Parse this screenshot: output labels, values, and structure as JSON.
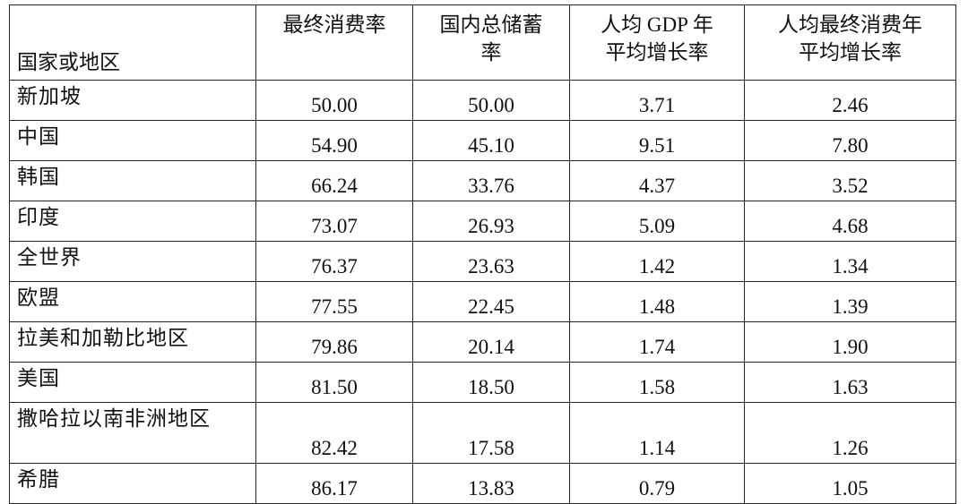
{
  "table": {
    "header": [
      [
        "国家或地区"
      ],
      [
        "最终消费率"
      ],
      [
        "国内总储蓄",
        "率"
      ],
      [
        "人均 GDP 年",
        "平均增长率"
      ],
      [
        "人均最终消费年",
        "平均增长率"
      ]
    ],
    "rows": [
      [
        "新加坡",
        "50.00",
        "50.00",
        "3.71",
        "2.46"
      ],
      [
        "中国",
        "54.90",
        "45.10",
        "9.51",
        "7.80"
      ],
      [
        "韩国",
        "66.24",
        "33.76",
        "4.37",
        "3.52"
      ],
      [
        "印度",
        "73.07",
        "26.93",
        "5.09",
        "4.68"
      ],
      [
        "全世界",
        "76.37",
        "23.63",
        "1.42",
        "1.34"
      ],
      [
        "欧盟",
        "77.55",
        "22.45",
        "1.48",
        "1.39"
      ],
      [
        "拉美和加勒比地区",
        "79.86",
        "20.14",
        "1.74",
        "1.90"
      ],
      [
        "美国",
        "81.50",
        "18.50",
        "1.58",
        "1.63"
      ],
      [
        "撒哈拉以南非洲地区",
        "82.42",
        "17.58",
        "1.14",
        "1.26"
      ],
      [
        "希腊",
        "86.17",
        "13.83",
        "0.79",
        "1.05"
      ]
    ]
  }
}
